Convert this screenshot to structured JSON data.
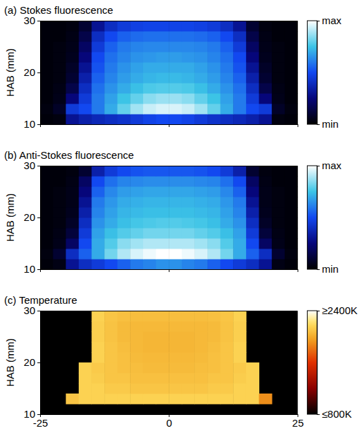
{
  "chart_data": [
    {
      "type": "heatmap",
      "title": "(a) Stokes fluorescence",
      "y_label": "HAB (mm)",
      "color": "blues",
      "tick_labels": "y",
      "xlim": [
        -25,
        25
      ],
      "ylim": [
        10,
        30
      ],
      "xticks": [
        -25,
        0,
        25
      ],
      "yticks": [
        10,
        20,
        30
      ],
      "x": [
        -23.75,
        -21.25,
        -18.75,
        -16.25,
        -13.75,
        -11.25,
        -8.75,
        -6.25,
        -3.75,
        -1.25,
        1.25,
        3.75,
        6.25,
        8.75,
        11.25,
        13.75,
        16.25,
        18.75,
        21.25,
        23.75
      ],
      "y": [
        11,
        13,
        15,
        17,
        19,
        21,
        23,
        25,
        27,
        29
      ],
      "z": [
        [
          0.02,
          0.03,
          0.3,
          0.35,
          0.38,
          0.4,
          0.42,
          0.45,
          0.48,
          0.5,
          0.5,
          0.48,
          0.45,
          0.42,
          0.4,
          0.38,
          0.35,
          0.3,
          0.03,
          0.02
        ],
        [
          0.03,
          0.08,
          0.45,
          0.5,
          0.6,
          0.7,
          0.8,
          0.88,
          0.93,
          0.95,
          0.95,
          0.93,
          0.88,
          0.8,
          0.7,
          0.6,
          0.5,
          0.45,
          0.08,
          0.03
        ],
        [
          0.02,
          0.05,
          0.25,
          0.45,
          0.6,
          0.68,
          0.75,
          0.8,
          0.85,
          0.87,
          0.87,
          0.85,
          0.8,
          0.75,
          0.68,
          0.6,
          0.45,
          0.25,
          0.05,
          0.02
        ],
        [
          0.02,
          0.04,
          0.15,
          0.4,
          0.58,
          0.65,
          0.7,
          0.74,
          0.77,
          0.78,
          0.78,
          0.77,
          0.74,
          0.7,
          0.65,
          0.58,
          0.4,
          0.15,
          0.04,
          0.02
        ],
        [
          0.02,
          0.03,
          0.1,
          0.35,
          0.55,
          0.62,
          0.67,
          0.7,
          0.72,
          0.73,
          0.73,
          0.72,
          0.7,
          0.67,
          0.62,
          0.55,
          0.35,
          0.1,
          0.03,
          0.02
        ],
        [
          0.02,
          0.03,
          0.08,
          0.3,
          0.52,
          0.6,
          0.65,
          0.68,
          0.7,
          0.7,
          0.7,
          0.7,
          0.68,
          0.65,
          0.6,
          0.52,
          0.3,
          0.08,
          0.03,
          0.02
        ],
        [
          0.02,
          0.03,
          0.06,
          0.25,
          0.5,
          0.58,
          0.62,
          0.65,
          0.66,
          0.67,
          0.67,
          0.66,
          0.65,
          0.62,
          0.58,
          0.5,
          0.25,
          0.06,
          0.03,
          0.02
        ],
        [
          0.02,
          0.03,
          0.05,
          0.2,
          0.45,
          0.55,
          0.6,
          0.62,
          0.63,
          0.63,
          0.63,
          0.63,
          0.62,
          0.6,
          0.55,
          0.45,
          0.2,
          0.05,
          0.03,
          0.02
        ],
        [
          0.02,
          0.02,
          0.04,
          0.15,
          0.4,
          0.5,
          0.55,
          0.57,
          0.58,
          0.58,
          0.58,
          0.58,
          0.57,
          0.55,
          0.5,
          0.4,
          0.15,
          0.04,
          0.02,
          0.02
        ],
        [
          0.02,
          0.02,
          0.03,
          0.1,
          0.3,
          0.4,
          0.45,
          0.47,
          0.48,
          0.48,
          0.48,
          0.48,
          0.47,
          0.45,
          0.4,
          0.3,
          0.1,
          0.03,
          0.02,
          0.02
        ]
      ],
      "colorbar_range": [
        0,
        1
      ],
      "colorbar_ticks": [
        {
          "value": 0,
          "label": "min"
        },
        {
          "value": 1,
          "label": "max"
        }
      ]
    },
    {
      "type": "heatmap",
      "title": "(b) Anti-Stokes fluorescence",
      "y_label": "HAB (mm)",
      "color": "blues",
      "tick_labels": "y",
      "xlim": [
        -25,
        25
      ],
      "ylim": [
        10,
        30
      ],
      "xticks": [
        -25,
        0,
        25
      ],
      "yticks": [
        10,
        20,
        30
      ],
      "x": [
        -23.75,
        -21.25,
        -18.75,
        -16.25,
        -13.75,
        -11.25,
        -8.75,
        -6.25,
        -3.75,
        -1.25,
        1.25,
        3.75,
        6.25,
        8.75,
        11.25,
        13.75,
        16.25,
        18.75,
        21.25,
        23.75
      ],
      "y": [
        11,
        13,
        15,
        17,
        19,
        21,
        23,
        25,
        27,
        29
      ],
      "z": [
        [
          0.02,
          0.04,
          0.3,
          0.4,
          0.45,
          0.5,
          0.55,
          0.6,
          0.62,
          0.65,
          0.65,
          0.62,
          0.6,
          0.55,
          0.5,
          0.45,
          0.4,
          0.3,
          0.04,
          0.02
        ],
        [
          0.03,
          0.1,
          0.4,
          0.55,
          0.7,
          0.82,
          0.9,
          0.95,
          0.98,
          1.0,
          1.0,
          0.98,
          0.95,
          0.9,
          0.82,
          0.7,
          0.55,
          0.4,
          0.1,
          0.03
        ],
        [
          0.02,
          0.05,
          0.2,
          0.5,
          0.7,
          0.78,
          0.85,
          0.88,
          0.9,
          0.9,
          0.9,
          0.9,
          0.88,
          0.85,
          0.78,
          0.7,
          0.5,
          0.2,
          0.05,
          0.02
        ],
        [
          0.02,
          0.04,
          0.12,
          0.45,
          0.68,
          0.74,
          0.78,
          0.8,
          0.82,
          0.82,
          0.82,
          0.82,
          0.8,
          0.78,
          0.74,
          0.68,
          0.45,
          0.12,
          0.04,
          0.02
        ],
        [
          0.02,
          0.03,
          0.08,
          0.4,
          0.65,
          0.7,
          0.74,
          0.76,
          0.77,
          0.78,
          0.78,
          0.77,
          0.76,
          0.74,
          0.7,
          0.65,
          0.4,
          0.08,
          0.03,
          0.02
        ],
        [
          0.02,
          0.03,
          0.06,
          0.35,
          0.62,
          0.68,
          0.72,
          0.73,
          0.74,
          0.74,
          0.74,
          0.74,
          0.73,
          0.72,
          0.68,
          0.62,
          0.35,
          0.06,
          0.03,
          0.02
        ],
        [
          0.02,
          0.03,
          0.05,
          0.3,
          0.6,
          0.66,
          0.7,
          0.71,
          0.72,
          0.72,
          0.72,
          0.72,
          0.71,
          0.7,
          0.66,
          0.6,
          0.3,
          0.05,
          0.03,
          0.02
        ],
        [
          0.02,
          0.03,
          0.05,
          0.25,
          0.55,
          0.63,
          0.67,
          0.68,
          0.69,
          0.69,
          0.69,
          0.69,
          0.68,
          0.67,
          0.63,
          0.55,
          0.25,
          0.05,
          0.03,
          0.02
        ],
        [
          0.02,
          0.02,
          0.04,
          0.2,
          0.5,
          0.58,
          0.62,
          0.63,
          0.64,
          0.64,
          0.64,
          0.64,
          0.63,
          0.62,
          0.58,
          0.5,
          0.2,
          0.04,
          0.02,
          0.02
        ],
        [
          0.02,
          0.02,
          0.03,
          0.1,
          0.35,
          0.45,
          0.5,
          0.52,
          0.53,
          0.53,
          0.53,
          0.53,
          0.52,
          0.5,
          0.45,
          0.35,
          0.1,
          0.03,
          0.02,
          0.02
        ]
      ],
      "colorbar_range": [
        0,
        1
      ],
      "colorbar_ticks": [
        {
          "value": 0,
          "label": "min"
        },
        {
          "value": 1,
          "label": "max"
        }
      ]
    },
    {
      "type": "heatmap",
      "title": "(c) Temperature",
      "y_label": "HAB (mm)",
      "color": "hot",
      "xlim": [
        -25,
        25
      ],
      "ylim": [
        10,
        30
      ],
      "xticks": [
        -25,
        0,
        25
      ],
      "yticks": [
        10,
        20,
        30
      ],
      "x": [
        -23.75,
        -21.25,
        -18.75,
        -16.25,
        -13.75,
        -11.25,
        -8.75,
        -6.25,
        -3.75,
        -1.25,
        1.25,
        3.75,
        6.25,
        8.75,
        11.25,
        13.75,
        16.25,
        18.75,
        21.25,
        23.75
      ],
      "y": [
        11,
        13,
        15,
        17,
        19,
        21,
        23,
        25,
        27,
        29
      ],
      "z": [
        [
          null,
          null,
          null,
          null,
          null,
          null,
          null,
          null,
          null,
          null,
          null,
          null,
          null,
          null,
          null,
          null,
          null,
          null,
          null,
          null
        ],
        [
          null,
          null,
          2100,
          2150,
          2150,
          2150,
          2150,
          2150,
          2150,
          2150,
          2150,
          2150,
          2150,
          2150,
          2150,
          2150,
          2150,
          1900,
          null,
          null
        ],
        [
          null,
          null,
          null,
          2150,
          2150,
          2120,
          2120,
          2100,
          2100,
          2100,
          2100,
          2100,
          2100,
          2120,
          2120,
          2150,
          2150,
          null,
          null,
          null
        ],
        [
          null,
          null,
          null,
          2150,
          2130,
          2100,
          2100,
          2080,
          2080,
          2080,
          2080,
          2080,
          2080,
          2100,
          2100,
          2130,
          2150,
          null,
          null,
          null
        ],
        [
          null,
          null,
          null,
          2150,
          2120,
          2100,
          2080,
          2070,
          2060,
          2060,
          2060,
          2060,
          2070,
          2080,
          2100,
          2120,
          2150,
          null,
          null,
          null
        ],
        [
          null,
          null,
          null,
          null,
          2150,
          2100,
          2080,
          2060,
          2050,
          2050,
          2050,
          2050,
          2060,
          2080,
          2100,
          2150,
          null,
          null,
          null,
          null
        ],
        [
          null,
          null,
          null,
          null,
          2150,
          2100,
          2070,
          2050,
          2040,
          2040,
          2040,
          2040,
          2050,
          2070,
          2100,
          2150,
          null,
          null,
          null,
          null
        ],
        [
          null,
          null,
          null,
          null,
          2140,
          2090,
          2060,
          2050,
          2040,
          2040,
          2040,
          2040,
          2050,
          2060,
          2090,
          2140,
          null,
          null,
          null,
          null
        ],
        [
          null,
          null,
          null,
          null,
          2140,
          2090,
          2060,
          2050,
          2050,
          2050,
          2050,
          2050,
          2050,
          2060,
          2090,
          2140,
          null,
          null,
          null,
          null
        ],
        [
          null,
          null,
          null,
          null,
          2150,
          2100,
          2080,
          2070,
          2070,
          2070,
          2070,
          2070,
          2070,
          2080,
          2100,
          2150,
          null,
          null,
          null,
          null
        ]
      ],
      "colorbar_range": [
        800,
        2400
      ],
      "colorbar_ticks": [
        {
          "value": 800,
          "label": "≤800K"
        },
        {
          "value": 2400,
          "label": "≥2400K"
        }
      ]
    }
  ]
}
